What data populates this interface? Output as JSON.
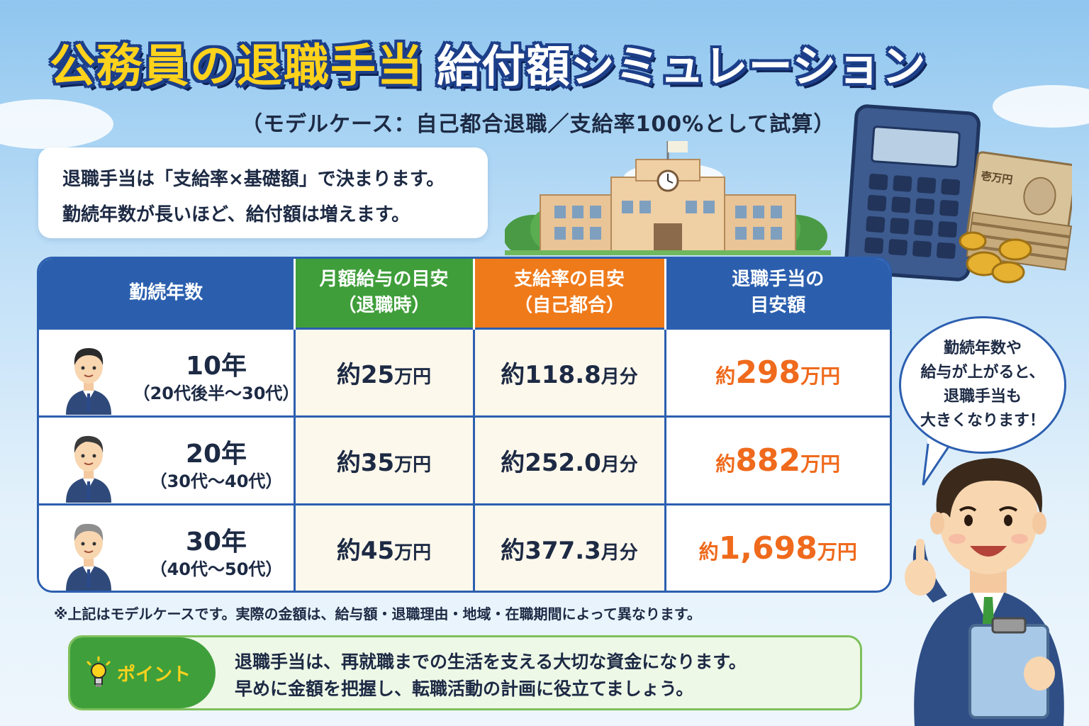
{
  "title": {
    "main": "公務員の退職手当",
    "sub": "給付額シミュレーション"
  },
  "subtitle": "（モデルケース：自己都合退職／支給率100%として試算）",
  "intro": {
    "line1": "退職手当は「支給率×基礎額」で決まります。",
    "line2": "勤続年数が長いほど、給付額は増えます。"
  },
  "table": {
    "headers": {
      "years": "勤続年数",
      "salary_l1": "月額給与の目安",
      "salary_l2": "（退職時）",
      "rate_l1": "支給率の目安",
      "rate_l2": "（自己都合）",
      "amount_l1": "退職手当の",
      "amount_l2": "目安額"
    },
    "rows": [
      {
        "years": "10年",
        "age": "（20代後半〜30代）",
        "salary_pre": "約",
        "salary_num": "25",
        "salary_unit": "万円",
        "rate_pre": "約",
        "rate_num": "118.8",
        "rate_unit": "月分",
        "amount_pre": "約",
        "amount_num": "298",
        "amount_unit": "万円"
      },
      {
        "years": "20年",
        "age": "（30代〜40代）",
        "salary_pre": "約",
        "salary_num": "35",
        "salary_unit": "万円",
        "rate_pre": "約",
        "rate_num": "252.0",
        "rate_unit": "月分",
        "amount_pre": "約",
        "amount_num": "882",
        "amount_unit": "万円"
      },
      {
        "years": "30年",
        "age": "（40代〜50代）",
        "salary_pre": "約",
        "salary_num": "45",
        "salary_unit": "万円",
        "rate_pre": "約",
        "rate_num": "377.3",
        "rate_unit": "月分",
        "amount_pre": "約",
        "amount_num": "1,698",
        "amount_unit": "万円"
      }
    ]
  },
  "note": "※上記はモデルケースです。実際の金額は、給与額・退職理由・地域・在職期間によって異なります。",
  "point": {
    "label": "ポイント",
    "line1": "退職手当は、再就職までの生活を支える大切な資金になります。",
    "line2": "早めに金額を把握し、転職活動の計画に役立てましょう。"
  },
  "bubble": {
    "line1": "勤続年数や",
    "line2": "給与が上がると、",
    "line3": "退職手当も",
    "line4": "大きくなります！"
  },
  "money_label": "壱万円",
  "colors": {
    "navy": "#2b5fae",
    "green": "#3f9e3a",
    "orange": "#ef7a1a",
    "amount": "#ef6a1c",
    "title_yellow": "#ffd21c"
  }
}
